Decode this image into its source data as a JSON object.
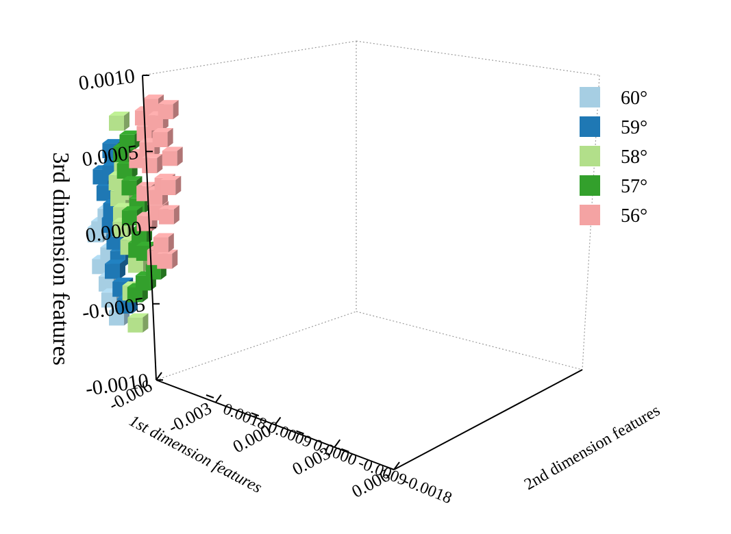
{
  "chart_data": {
    "type": "scatter",
    "subtype": "3d-voxel-scatter",
    "xlabel": "1st dimension features",
    "ylabel": "2nd dimension features",
    "zlabel": "3rd dimension features",
    "xlim": [
      -0.006,
      0.006
    ],
    "ylim": [
      -0.0018,
      0.0018
    ],
    "zlim": [
      -0.001,
      0.001
    ],
    "x_ticks": [
      "-0.006",
      "-0.003",
      "0.000",
      "0.003",
      "0.006"
    ],
    "y_ticks": [
      "-0.0018",
      "-0.0009",
      "0.0000",
      "0.0009",
      "0.0018"
    ],
    "z_ticks": [
      "-0.0010",
      "-0.0005",
      "0.0000",
      "0.0005",
      "0.0010"
    ],
    "grid": true,
    "legend_position": "right",
    "series": [
      {
        "name": "60°",
        "color": "#a6cee3",
        "points": [
          [
            -0.0032,
            0.0002,
            -5e-05
          ],
          [
            -0.0033,
            0.0003,
            -0.00015
          ],
          [
            -0.0034,
            0.0001,
            -0.0003
          ],
          [
            -0.0036,
            0.0002,
            -0.0004
          ],
          [
            -0.0033,
            0.0002,
            -0.0005
          ],
          [
            -0.0031,
            0.0001,
            -0.0007
          ],
          [
            -0.0035,
            0.0003,
            -0.0002
          ],
          [
            -0.0032,
            0.0002,
            -0.0006
          ]
        ]
      },
      {
        "name": "59°",
        "color": "#1f78b4",
        "points": [
          [
            -0.0028,
            0.0002,
            0.0004
          ],
          [
            -0.003,
            0.0001,
            0.0003
          ],
          [
            -0.0031,
            0.0003,
            0.0002
          ],
          [
            -0.0032,
            0.0002,
            0.0001
          ],
          [
            -0.003,
            0.0002,
            -0.0001
          ],
          [
            -0.0028,
            0.0002,
            -0.0002
          ],
          [
            -0.0029,
            0.0001,
            -0.0003
          ],
          [
            -0.0027,
            0.0003,
            -0.0004
          ],
          [
            -0.0026,
            0.0002,
            -0.0005
          ],
          [
            -0.0024,
            0.0002,
            -0.0006
          ],
          [
            -0.0026,
            0.0003,
            0.00025
          ],
          [
            -0.0029,
            0.0002,
            0.0
          ]
        ]
      },
      {
        "name": "58°",
        "color": "#b2df8a",
        "points": [
          [
            -0.0024,
            0.0002,
            0.0006
          ],
          [
            -0.0025,
            0.0001,
            0.0003
          ],
          [
            -0.0023,
            0.0003,
            0.0002
          ],
          [
            -0.0025,
            0.0002,
            0.0001
          ],
          [
            -0.0024,
            0.0002,
            0.0
          ],
          [
            -0.0022,
            0.0003,
            -0.0001
          ],
          [
            -0.0021,
            0.0002,
            -0.0002
          ],
          [
            -0.002,
            0.0001,
            -0.0003
          ],
          [
            -0.0021,
            0.0002,
            -0.0005
          ],
          [
            -0.0019,
            0.0002,
            -0.0007
          ],
          [
            -0.0023,
            0.0002,
            0.00015
          ]
        ]
      },
      {
        "name": "57°",
        "color": "#33a02c",
        "points": [
          [
            -0.0019,
            0.0002,
            0.0005
          ],
          [
            -0.002,
            0.0003,
            0.0004
          ],
          [
            -0.0021,
            0.0002,
            0.0003
          ],
          [
            -0.0019,
            0.0002,
            0.0002
          ],
          [
            -0.0018,
            0.0001,
            0.0001
          ],
          [
            -0.0017,
            0.0003,
            0.0
          ],
          [
            -0.0015,
            0.0002,
            -0.0001
          ],
          [
            -0.0013,
            0.0002,
            -0.0002
          ],
          [
            -0.0011,
            0.0001,
            -0.0003
          ],
          [
            -0.0014,
            0.0002,
            -0.0004
          ],
          [
            -0.0017,
            0.0002,
            -0.0002
          ],
          [
            -0.0016,
            0.0003,
            -0.0005
          ]
        ]
      },
      {
        "name": "56°",
        "color": "#f4a3a3",
        "points": [
          [
            -0.0006,
            0.0002,
            0.0008
          ],
          [
            0.0004,
            0.0003,
            0.0008
          ],
          [
            -0.001,
            0.0002,
            0.0006
          ],
          [
            -0.0004,
            0.0002,
            0.0007
          ],
          [
            0.0,
            0.0001,
            0.0005
          ],
          [
            -0.0012,
            0.0003,
            0.0004
          ],
          [
            -0.0008,
            0.0002,
            0.0004
          ],
          [
            -0.0002,
            0.0002,
            0.0003
          ],
          [
            -0.0014,
            0.0001,
            0.0002
          ],
          [
            -0.0006,
            0.0002,
            0.0001
          ],
          [
            0.0002,
            0.0003,
            0.0001
          ],
          [
            -0.0012,
            0.0002,
            0.0
          ],
          [
            -0.0004,
            0.0002,
            -0.0001
          ],
          [
            -0.001,
            0.0001,
            -0.0002
          ],
          [
            -0.0006,
            0.0002,
            0.0002
          ],
          [
            -0.0002,
            0.0002,
            0.0006
          ],
          [
            -0.0008,
            0.0003,
            0.0007
          ],
          [
            0.0001,
            0.0002,
            0.0003
          ],
          [
            -0.0009,
            0.0002,
            0.0005
          ],
          [
            -0.0005,
            0.0001,
            -0.0002
          ]
        ]
      }
    ]
  }
}
